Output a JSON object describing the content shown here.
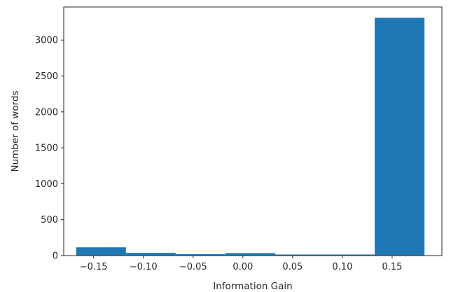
{
  "chart_data": {
    "type": "bar",
    "title": "",
    "xlabel": "Information Gain",
    "ylabel": "Number of words",
    "xlim": [
      -0.18,
      0.2
    ],
    "ylim": [
      0,
      3460
    ],
    "xticks": [
      -0.15,
      -0.1,
      -0.05,
      0.0,
      0.05,
      0.1,
      0.15
    ],
    "xtick_labels": [
      "−0.15",
      "−0.10",
      "−0.05",
      "0.00",
      "0.05",
      "0.10",
      "0.15"
    ],
    "yticks": [
      0,
      500,
      1000,
      1500,
      2000,
      2500,
      3000
    ],
    "ytick_labels": [
      "0",
      "500",
      "1000",
      "1500",
      "2000",
      "2500",
      "3000"
    ],
    "bar_color": "#1f77b4",
    "bins": [
      {
        "start": -0.1675,
        "end": -0.1175,
        "value": 115
      },
      {
        "start": -0.1175,
        "end": -0.0675,
        "value": 38
      },
      {
        "start": -0.0675,
        "end": -0.0175,
        "value": 20
      },
      {
        "start": -0.0175,
        "end": 0.0325,
        "value": 35
      },
      {
        "start": 0.0325,
        "end": 0.0825,
        "value": 15
      },
      {
        "start": 0.0825,
        "end": 0.1325,
        "value": 15
      },
      {
        "start": 0.1325,
        "end": 0.1825,
        "value": 3310
      }
    ],
    "grid": false,
    "legend": "none"
  }
}
